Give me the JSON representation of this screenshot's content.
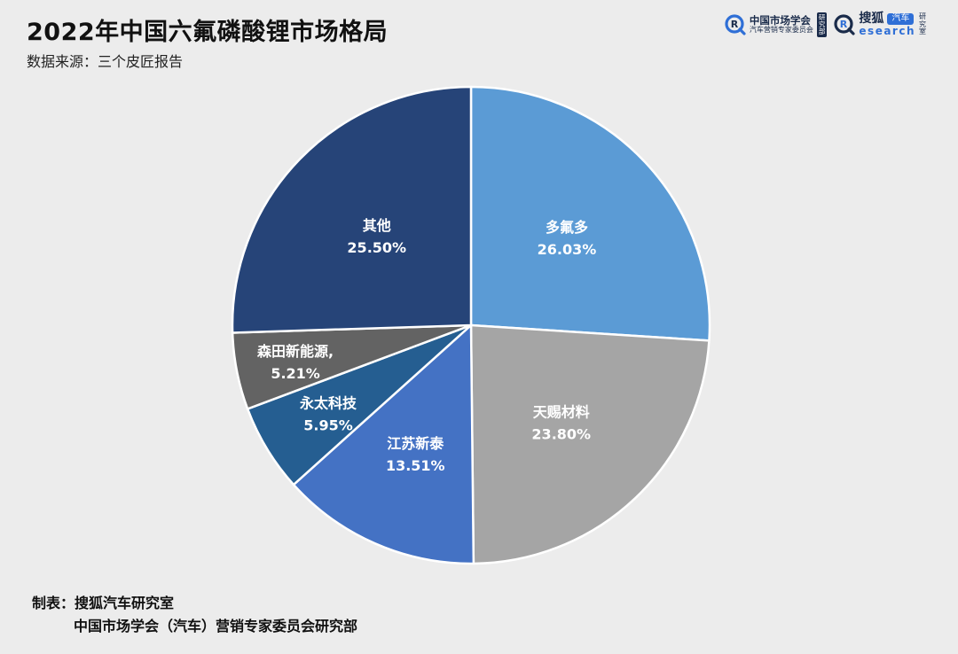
{
  "header": {
    "title": "2022年中国六氟磷酸锂市场格局",
    "subtitle": "数据来源：三个皮匠报告"
  },
  "logos": {
    "logo1_main": "中国市场学会",
    "logo1_sub": "汽车营销专家委员会",
    "logo1_tag": [
      "研",
      "究",
      "部"
    ],
    "logo2_main": "搜狐",
    "logo2_badge": "汽车",
    "logo2_sub": "esearch",
    "logo2_tag": [
      "研",
      "究",
      "室"
    ]
  },
  "chart_data": {
    "type": "pie",
    "start_angle_deg": 0,
    "direction": "clockwise",
    "slices": [
      {
        "label": "多氟多",
        "value": 26.03,
        "value_label": "26.03%",
        "color": "#5b9bd5"
      },
      {
        "label": "天赐材料",
        "value": 23.8,
        "value_label": "23.80%",
        "color": "#a5a5a5"
      },
      {
        "label": "江苏新泰",
        "value": 13.51,
        "value_label": "13.51%",
        "color": "#4472c4"
      },
      {
        "label": "永太科技",
        "value": 5.95,
        "value_label": "5.95%",
        "color": "#255e91"
      },
      {
        "label": "森田新能源,",
        "value": 5.21,
        "value_label": "5.21%",
        "color": "#636363"
      },
      {
        "label": "其他",
        "value": 25.5,
        "value_label": "25.50%",
        "color": "#264478"
      }
    ]
  },
  "footer": {
    "line1": "制表：搜狐汽车研究室",
    "line2": "中国市场学会（汽车）营销专家委员会研究部"
  }
}
